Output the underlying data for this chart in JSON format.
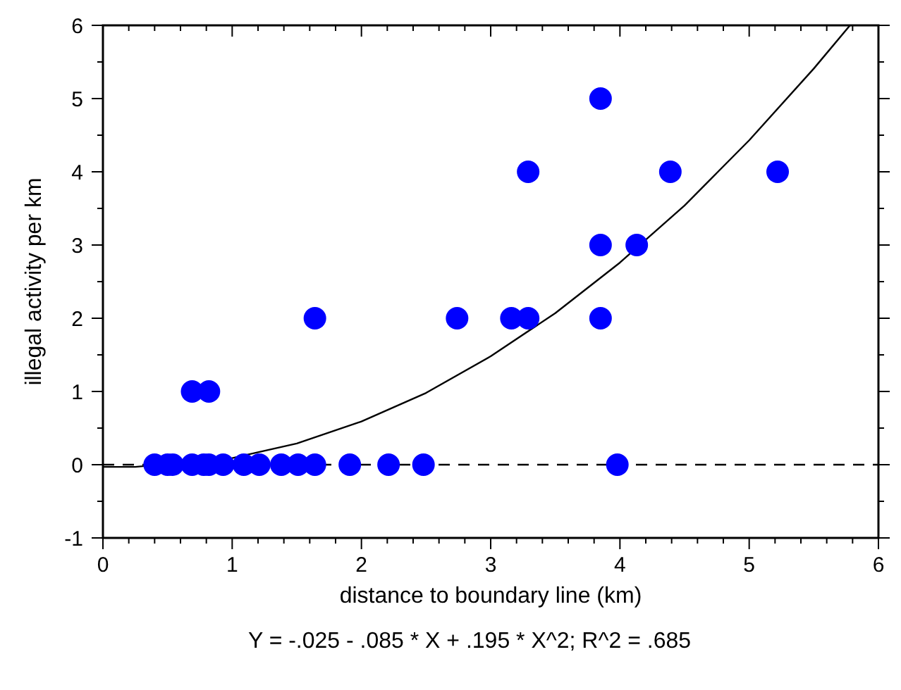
{
  "chart_data": {
    "type": "scatter",
    "xlabel": "distance to boundary line (km)",
    "ylabel": "illegal activity per km",
    "xlim": [
      0,
      6
    ],
    "ylim": [
      -1,
      6
    ],
    "xticks": [
      0,
      {
        "value": 0.2,
        "label": null
      },
      {
        "value": 0.4,
        "label": null
      },
      {
        "value": 0.6,
        "label": null
      },
      {
        "value": 0.8,
        "label": null
      },
      1,
      {
        "value": 1.2,
        "label": null
      },
      {
        "value": 1.4,
        "label": null
      },
      {
        "value": 1.6,
        "label": null
      },
      {
        "value": 1.8,
        "label": null
      },
      2,
      {
        "value": 2.2,
        "label": null
      },
      {
        "value": 2.4,
        "label": null
      },
      {
        "value": 2.6,
        "label": null
      },
      {
        "value": 2.8,
        "label": null
      },
      3,
      {
        "value": 3.2,
        "label": null
      },
      {
        "value": 3.4,
        "label": null
      },
      {
        "value": 3.6,
        "label": null
      },
      {
        "value": 3.8,
        "label": null
      },
      4,
      {
        "value": 4.2,
        "label": null
      },
      {
        "value": 4.4,
        "label": null
      },
      {
        "value": 4.6,
        "label": null
      },
      {
        "value": 4.8,
        "label": null
      },
      5,
      {
        "value": 5.2,
        "label": null
      },
      {
        "value": 5.4,
        "label": null
      },
      {
        "value": 5.6,
        "label": null
      },
      {
        "value": 5.8,
        "label": null
      },
      6
    ],
    "yticks": [
      -1,
      {
        "value": -0.5,
        "label": null
      },
      0,
      {
        "value": 0.5,
        "label": null
      },
      1,
      {
        "value": 1.5,
        "label": null
      },
      2,
      {
        "value": 2.5,
        "label": null
      },
      3,
      {
        "value": 3.5,
        "label": null
      },
      4,
      {
        "value": 4.5,
        "label": null
      },
      5,
      {
        "value": 5.5,
        "label": null
      },
      6
    ],
    "grid": false,
    "series": [
      {
        "color": "#0000ff",
        "marker": "circle",
        "x": [
          0.4,
          0.5,
          0.54,
          0.69,
          0.78,
          0.82,
          0.93,
          1.09,
          1.21,
          1.38,
          1.51,
          1.64,
          1.91,
          2.21,
          2.48,
          3.98,
          0.69,
          0.82,
          1.64,
          2.74,
          3.16,
          3.29,
          3.85,
          3.85,
          4.13,
          3.29,
          4.39,
          5.22,
          3.85
        ],
        "values": [
          0,
          0,
          0,
          0,
          0,
          0,
          0,
          0,
          0,
          0,
          0,
          0,
          0,
          0,
          0,
          0,
          1,
          1,
          2,
          2,
          2,
          2,
          2,
          3,
          3,
          4,
          4,
          4,
          5
        ]
      },
      {
        "type": "line",
        "color": "#000000",
        "line_style": "solid",
        "marker": "none",
        "x": [
          0,
          0.25,
          1,
          1.5,
          2,
          2.5,
          3,
          3.5,
          4,
          4.5,
          5,
          5.5,
          5.78
        ],
        "values": [
          -0.03,
          -0.03,
          0.09,
          0.29,
          0.59,
          0.98,
          1.48,
          2.07,
          2.76,
          3.54,
          4.43,
          5.41,
          6.0
        ]
      }
    ],
    "ref_lines": [
      {
        "axis": "y",
        "value": 0,
        "label": null,
        "color": "#000000",
        "line_style": "dashed"
      }
    ],
    "annotations": [
      "Y = -.025 - .085 * X + .195 * X^2; R^2 = .685"
    ]
  }
}
